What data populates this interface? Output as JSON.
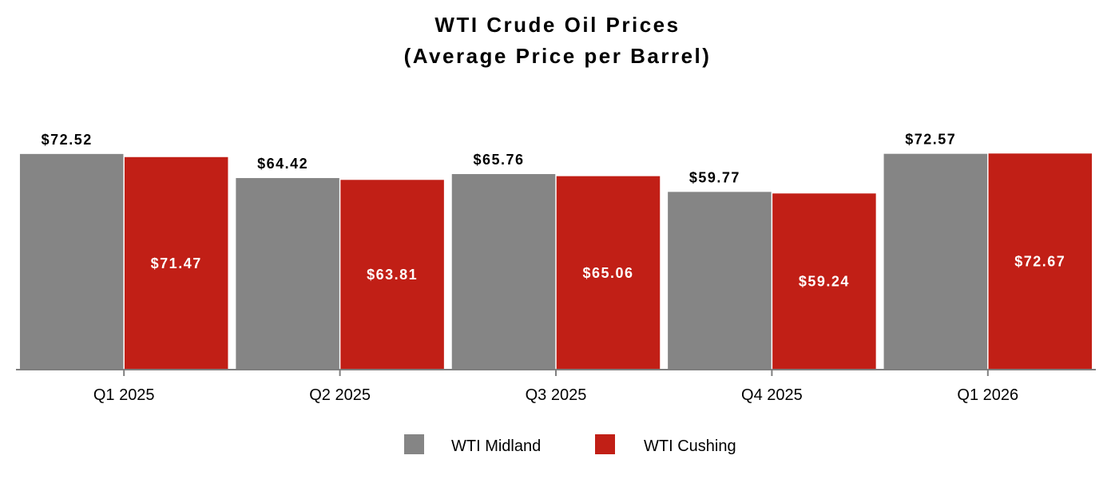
{
  "chart_data": {
    "type": "bar",
    "title": "WTI Crude Oil Prices",
    "subtitle": "(Average Price per Barrel)",
    "categories": [
      "Q1 2025",
      "Q2 2025",
      "Q3 2025",
      "Q4 2025",
      "Q1 2026"
    ],
    "series": [
      {
        "name": "WTI Midland",
        "color": "#858585",
        "values": [
          72.52,
          64.42,
          65.76,
          59.77,
          72.57
        ],
        "labels": [
          "$72.52",
          "$64.42",
          "$65.76",
          "$59.77",
          "$72.57"
        ],
        "label_position": "outside"
      },
      {
        "name": "WTI Cushing",
        "color": "#c11f16",
        "values": [
          71.47,
          63.81,
          65.06,
          59.24,
          72.67
        ],
        "labels": [
          "$71.47",
          "$63.81",
          "$65.06",
          "$59.24",
          "$72.67"
        ],
        "label_position": "inside"
      }
    ],
    "ylim": [
      0,
      80
    ],
    "grid": false,
    "legend_position": "bottom-center",
    "axis_color": "#7f7f7f"
  }
}
